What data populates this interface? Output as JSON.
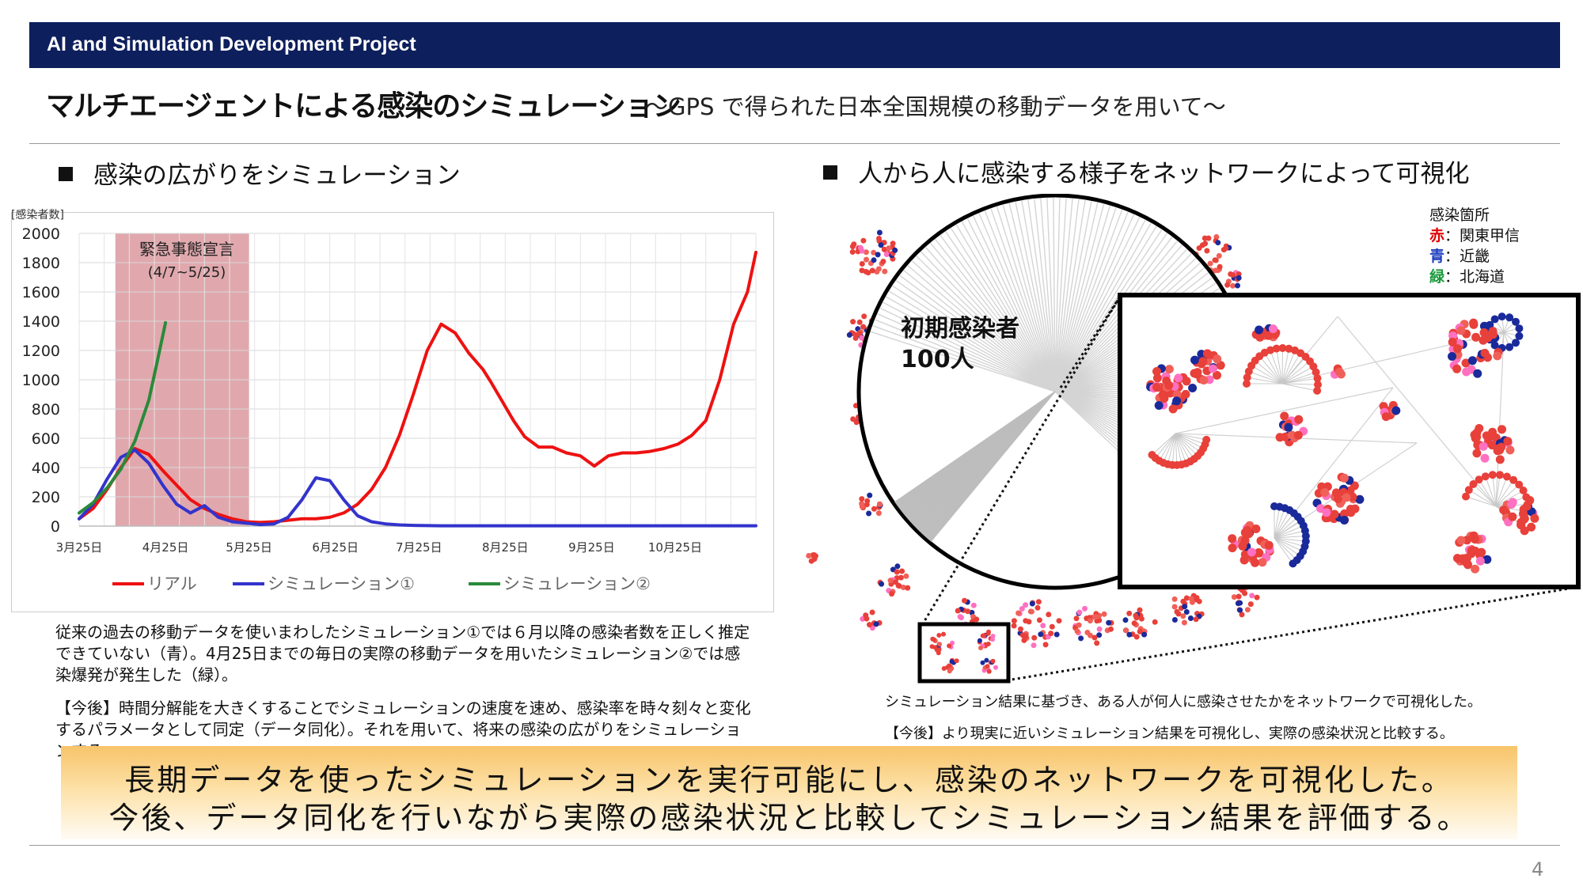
{
  "header": {
    "title": "AI and Simulation Development Project"
  },
  "slide": {
    "title": "マルチエージェントによる感染のシミュレーション",
    "subtitle": "～GPS で得られた日本全国規模の移動データを用いて～"
  },
  "left_section": {
    "heading": "感染の広がりをシミュレーション",
    "description": "従来の過去の移動データを使いまわしたシミュレーション①では６月以降の感染者数を正しく推定できていない（青）。4月25日までの毎日の実際の移動データを用いたシミュレーション②では感染爆発が発生した（緑）。",
    "future": "【今後】時間分解能を大きくすることでシミュレーションの速度を速め、感染率を時々刻々と変化するパラメータとして同定（データ同化）。それを用いて、将来の感染の広がりをシミュレーションする。"
  },
  "right_section": {
    "heading": "人から人に感染する様子をネットワークによって可視化",
    "initial_infected_line1": "初期感染者",
    "initial_infected_line2": "100人",
    "legend_title": "感染箇所",
    "legend": [
      {
        "key": "赤",
        "sep": "：",
        "value": "関東甲信",
        "color": "#e00000"
      },
      {
        "key": "青",
        "sep": "：",
        "value": "近畿",
        "color": "#1f3fbf"
      },
      {
        "key": "緑",
        "sep": "：",
        "value": "北海道",
        "color": "#1a9a3a"
      }
    ],
    "description": "シミュレーション結果に基づき、ある人が何人に感染させたかをネットワークで可視化した。",
    "future": "【今後】より現実に近いシミュレーション結果を可視化し、実際の感染状況と比較する。"
  },
  "banner": {
    "line1": "長期データを使ったシミュレーションを実行可能にし、感染のネットワークを可視化した。",
    "line2": "今後、データ同化を行いながら実際の感染状況と比較してシミュレーション結果を評価する。"
  },
  "page_number": "4",
  "chart_data": {
    "type": "line",
    "ylabel": "[感染者数]",
    "ylim": [
      0,
      2000
    ],
    "yticks": [
      "0",
      "200",
      "400",
      "600",
      "800",
      "1000",
      "1200",
      "1400",
      "1600",
      "1800",
      "2000"
    ],
    "xticks": [
      "3月25日",
      "4月25日",
      "5月25日",
      "6月25日",
      "7月25日",
      "8月25日",
      "9月25日",
      "10月25日"
    ],
    "xtick_days": [
      0,
      31,
      61,
      92,
      122,
      153,
      184,
      214
    ],
    "xlim_days": [
      0,
      243
    ],
    "grid": true,
    "legend_position": "bottom",
    "shaded_region": {
      "label_line1": "緊急事態宣言",
      "label_line2": "(4/7~5/25)",
      "from_day": 13,
      "to_day": 61,
      "color": "#e0a8ad"
    },
    "series": [
      {
        "name": "リアル",
        "color": "#ee1111",
        "x": [
          0,
          5,
          10,
          15,
          20,
          25,
          30,
          35,
          40,
          45,
          50,
          55,
          60,
          65,
          70,
          75,
          80,
          85,
          90,
          95,
          100,
          105,
          110,
          115,
          120,
          125,
          130,
          135,
          140,
          145,
          148,
          152,
          156,
          160,
          165,
          170,
          175,
          180,
          185,
          190,
          195,
          200,
          205,
          210,
          215,
          220,
          225,
          230,
          235,
          240,
          243
        ],
        "y": [
          50,
          120,
          250,
          400,
          530,
          490,
          380,
          280,
          180,
          120,
          80,
          50,
          30,
          25,
          30,
          40,
          50,
          50,
          60,
          90,
          150,
          250,
          400,
          620,
          900,
          1200,
          1380,
          1320,
          1180,
          1070,
          980,
          850,
          720,
          610,
          540,
          540,
          500,
          480,
          410,
          480,
          500,
          500,
          510,
          530,
          560,
          620,
          720,
          1000,
          1380,
          1600,
          1870
        ]
      },
      {
        "name": "シミュレーション①",
        "color": "#3333cc",
        "x": [
          0,
          5,
          10,
          15,
          20,
          25,
          30,
          35,
          40,
          45,
          50,
          55,
          60,
          65,
          70,
          75,
          80,
          85,
          90,
          95,
          100,
          105,
          110,
          115,
          120,
          125,
          130,
          243
        ],
        "y": [
          50,
          150,
          320,
          470,
          520,
          430,
          280,
          150,
          90,
          140,
          60,
          30,
          20,
          10,
          15,
          60,
          180,
          330,
          310,
          180,
          70,
          30,
          15,
          8,
          5,
          3,
          2,
          2
        ]
      },
      {
        "name": "シミュレーション②",
        "color": "#2a8a3a",
        "x": [
          0,
          5,
          10,
          15,
          20,
          25,
          28,
          31
        ],
        "y": [
          90,
          160,
          260,
          390,
          580,
          860,
          1120,
          1390
        ]
      }
    ]
  }
}
